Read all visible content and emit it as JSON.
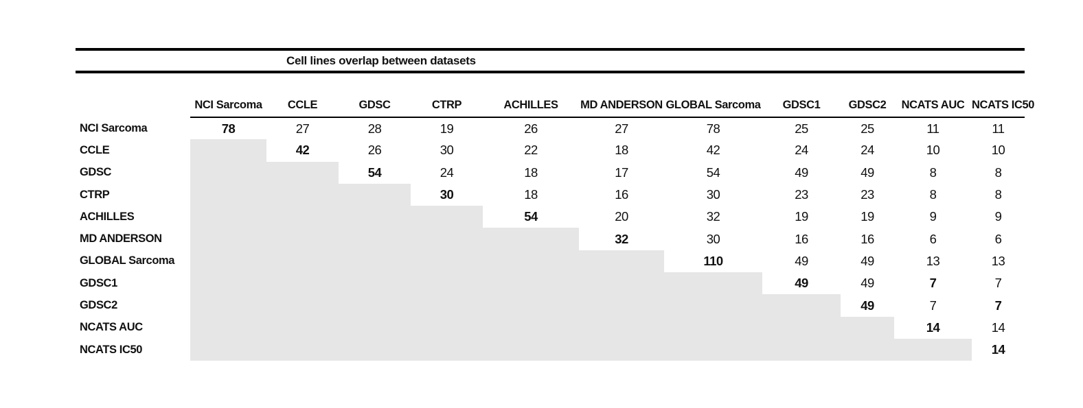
{
  "title": "Cell lines overlap between datasets",
  "colors": {
    "shade": "#e6e6e6",
    "rule": "#000000",
    "text": "#111111",
    "background": "#ffffff"
  },
  "chart_data": {
    "type": "table",
    "title": "Cell lines overlap between datasets",
    "layout": {
      "lower_triangle": "shaded",
      "diagonal": "bold"
    },
    "columns": [
      "NCI Sarcoma",
      "CCLE",
      "GDSC",
      "CTRP",
      "ACHILLES",
      "MD ANDERSON",
      "GLOBAL Sarcoma",
      "GDSC1",
      "GDSC2",
      "NCATS AUC",
      "NCATS IC50"
    ],
    "rows": [
      {
        "label": "NCI Sarcoma",
        "cells": [
          {
            "v": "78",
            "b": true
          },
          {
            "v": "27"
          },
          {
            "v": "28"
          },
          {
            "v": "19"
          },
          {
            "v": "26"
          },
          {
            "v": "27"
          },
          {
            "v": "78"
          },
          {
            "v": "25"
          },
          {
            "v": "25"
          },
          {
            "v": "11"
          },
          {
            "v": "11"
          }
        ]
      },
      {
        "label": "CCLE",
        "cells": [
          null,
          {
            "v": "42",
            "b": true
          },
          {
            "v": "26"
          },
          {
            "v": "30"
          },
          {
            "v": "22"
          },
          {
            "v": "18"
          },
          {
            "v": "42"
          },
          {
            "v": "24"
          },
          {
            "v": "24"
          },
          {
            "v": "10"
          },
          {
            "v": "10"
          }
        ]
      },
      {
        "label": "GDSC",
        "cells": [
          null,
          null,
          {
            "v": "54",
            "b": true
          },
          {
            "v": "24"
          },
          {
            "v": "18"
          },
          {
            "v": "17"
          },
          {
            "v": "54"
          },
          {
            "v": "49"
          },
          {
            "v": "49"
          },
          {
            "v": "8"
          },
          {
            "v": "8"
          }
        ]
      },
      {
        "label": "CTRP",
        "cells": [
          null,
          null,
          null,
          {
            "v": "30",
            "b": true
          },
          {
            "v": "18"
          },
          {
            "v": "16"
          },
          {
            "v": "30"
          },
          {
            "v": "23"
          },
          {
            "v": "23"
          },
          {
            "v": "8"
          },
          {
            "v": "8"
          }
        ]
      },
      {
        "label": "ACHILLES",
        "cells": [
          null,
          null,
          null,
          null,
          {
            "v": "54",
            "b": true
          },
          {
            "v": "20"
          },
          {
            "v": "32"
          },
          {
            "v": "19"
          },
          {
            "v": "19"
          },
          {
            "v": "9"
          },
          {
            "v": "9"
          }
        ]
      },
      {
        "label": "MD ANDERSON",
        "cells": [
          null,
          null,
          null,
          null,
          null,
          {
            "v": "32",
            "b": true
          },
          {
            "v": "30"
          },
          {
            "v": "16"
          },
          {
            "v": "16"
          },
          {
            "v": "6"
          },
          {
            "v": "6"
          }
        ]
      },
      {
        "label": "GLOBAL Sarcoma",
        "cells": [
          null,
          null,
          null,
          null,
          null,
          null,
          {
            "v": "110",
            "b": true
          },
          {
            "v": "49"
          },
          {
            "v": "49"
          },
          {
            "v": "13"
          },
          {
            "v": "13"
          }
        ]
      },
      {
        "label": "GDSC1",
        "cells": [
          null,
          null,
          null,
          null,
          null,
          null,
          null,
          {
            "v": "49",
            "b": true
          },
          {
            "v": "49"
          },
          {
            "v": "7",
            "b": true
          },
          {
            "v": "7"
          }
        ]
      },
      {
        "label": "GDSC2",
        "cells": [
          null,
          null,
          null,
          null,
          null,
          null,
          null,
          null,
          {
            "v": "49",
            "b": true
          },
          {
            "v": "7"
          },
          {
            "v": "7",
            "b": true
          }
        ]
      },
      {
        "label": "NCATS AUC",
        "cells": [
          null,
          null,
          null,
          null,
          null,
          null,
          null,
          null,
          null,
          {
            "v": "14",
            "b": true
          },
          {
            "v": "14"
          }
        ]
      },
      {
        "label": "NCATS IC50",
        "cells": [
          null,
          null,
          null,
          null,
          null,
          null,
          null,
          null,
          null,
          null,
          {
            "v": "14",
            "b": true
          }
        ]
      }
    ]
  }
}
